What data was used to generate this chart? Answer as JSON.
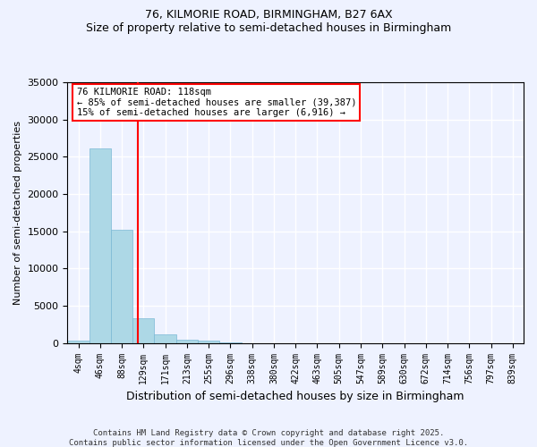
{
  "title_line1": "76, KILMORIE ROAD, BIRMINGHAM, B27 6AX",
  "title_line2": "Size of property relative to semi-detached houses in Birmingham",
  "xlabel": "Distribution of semi-detached houses by size in Birmingham",
  "ylabel": "Number of semi-detached properties",
  "annotation_title": "76 KILMORIE ROAD: 118sqm",
  "annotation_line2": "← 85% of semi-detached houses are smaller (39,387)",
  "annotation_line3": "15% of semi-detached houses are larger (6,916) →",
  "property_size": 118,
  "bar_color": "#add8e6",
  "bar_edgecolor": "#7ab8d4",
  "vline_color": "red",
  "background_color": "#eef2ff",
  "grid_color": "white",
  "categories": [
    "4sqm",
    "46sqm",
    "88sqm",
    "129sqm",
    "171sqm",
    "213sqm",
    "255sqm",
    "296sqm",
    "338sqm",
    "380sqm",
    "422sqm",
    "463sqm",
    "505sqm",
    "547sqm",
    "589sqm",
    "630sqm",
    "672sqm",
    "714sqm",
    "756sqm",
    "797sqm",
    "839sqm"
  ],
  "bin_edges": [
    4,
    46,
    88,
    129,
    171,
    213,
    255,
    296,
    338,
    380,
    422,
    463,
    505,
    547,
    589,
    630,
    672,
    714,
    756,
    797,
    839
  ],
  "values": [
    370,
    26100,
    15150,
    3300,
    1150,
    480,
    280,
    90,
    0,
    0,
    0,
    0,
    0,
    0,
    0,
    0,
    0,
    0,
    0,
    0,
    0
  ],
  "ylim": [
    0,
    35000
  ],
  "yticks": [
    0,
    5000,
    10000,
    15000,
    20000,
    25000,
    30000,
    35000
  ],
  "footer_line1": "Contains HM Land Registry data © Crown copyright and database right 2025.",
  "footer_line2": "Contains public sector information licensed under the Open Government Licence v3.0."
}
